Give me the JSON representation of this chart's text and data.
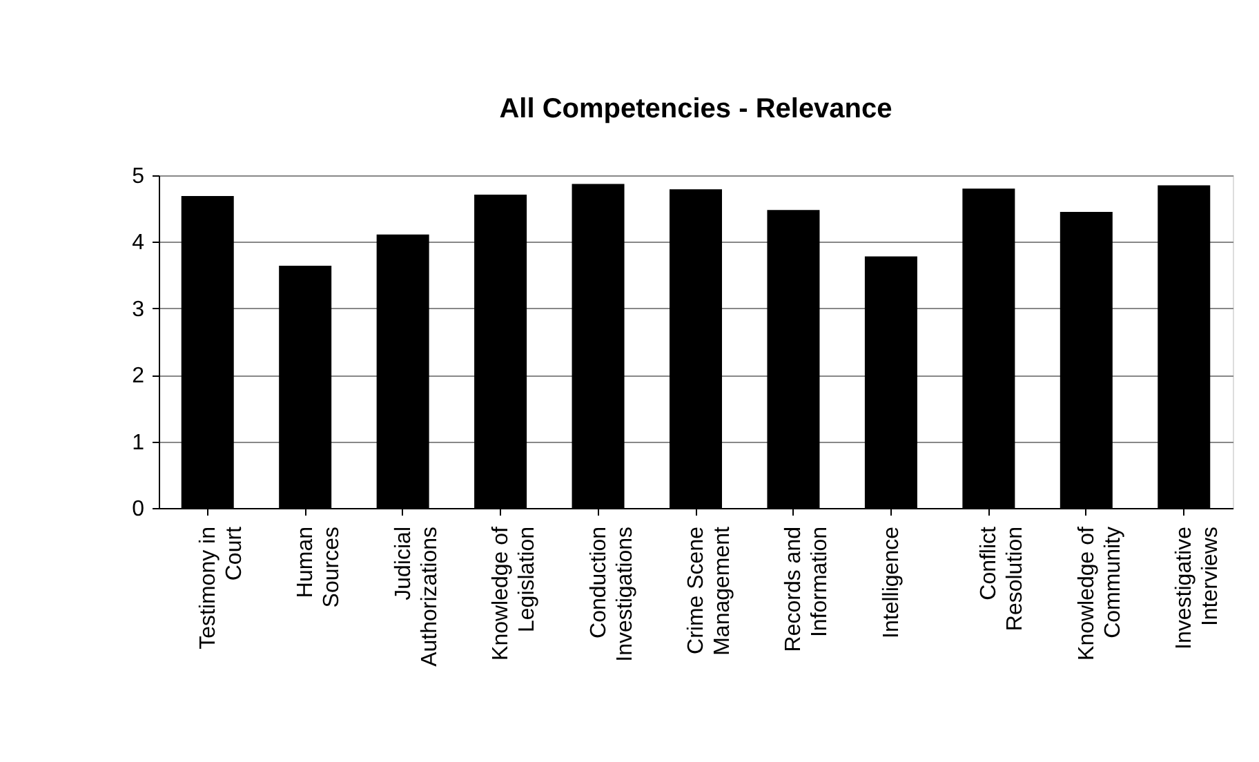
{
  "chart_data": {
    "type": "bar",
    "title": "All Competencies - Relevance",
    "categories": [
      "Testimony in\nCourt",
      "Human\nSources",
      "Judicial\nAuthorizations",
      "Knowledge of\nLegislation",
      "Conduction\nInvestigations",
      "Crime Scene\nManagement",
      "Records and\nInformation",
      "Intelligence",
      "Conflict\nResolution",
      "Knowledge of\nCommunity",
      "Investigative\nInterviews"
    ],
    "values": [
      4.69,
      3.64,
      4.11,
      4.71,
      4.87,
      4.79,
      4.48,
      3.78,
      4.8,
      4.45,
      4.85
    ],
    "color": "#000000",
    "ylim": [
      0,
      5
    ],
    "yticks": [
      0,
      1,
      2,
      3,
      4,
      5
    ],
    "grid": "y"
  }
}
